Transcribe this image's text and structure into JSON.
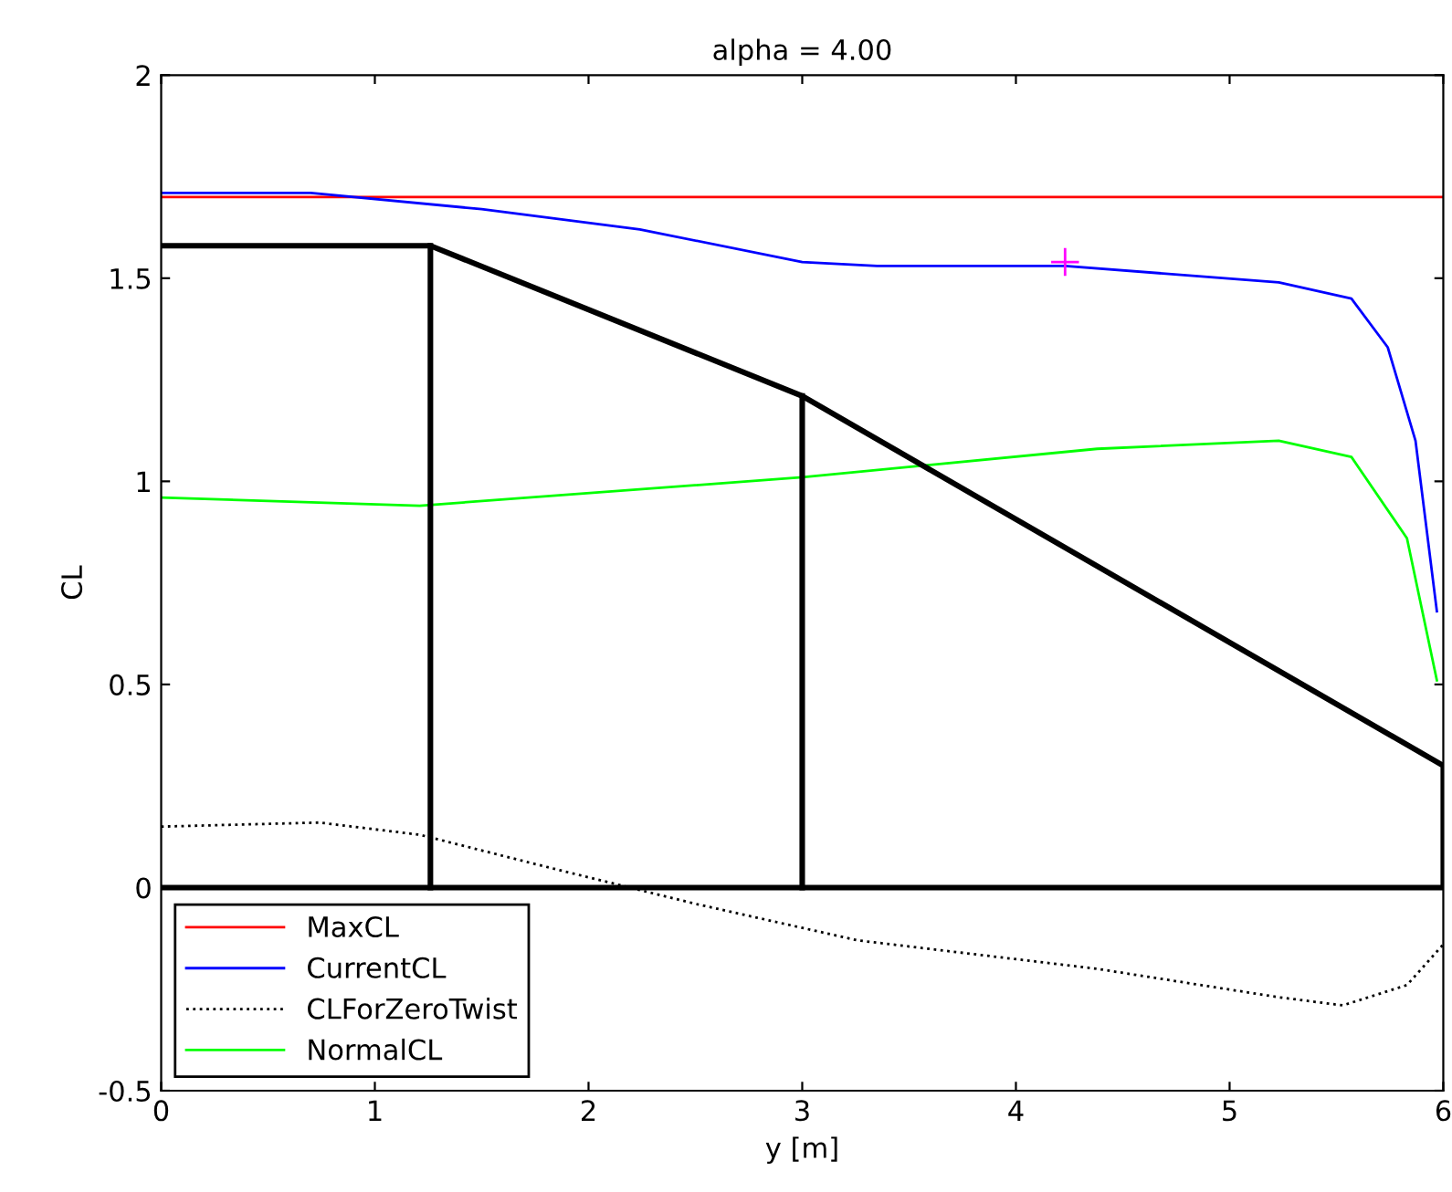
{
  "chart_data": {
    "type": "line",
    "title": "alpha = 4.00",
    "xlabel": "y [m]",
    "ylabel": "CL",
    "xlim": [
      0,
      6
    ],
    "ylim": [
      -0.5,
      2
    ],
    "xticks": [
      0,
      1,
      2,
      3,
      4,
      5,
      6
    ],
    "yticks": [
      -0.5,
      0,
      0.5,
      1,
      1.5,
      2
    ],
    "grid": false,
    "legend": "bottom left",
    "marker": "none",
    "series": [
      {
        "name": "MaxCL",
        "color": "#ff0000",
        "x": [
          0,
          6
        ],
        "values": [
          1.7,
          1.7
        ]
      },
      {
        "name": "CurrentCL",
        "color": "#0000ff",
        "x": [
          0,
          0.7,
          1.5,
          2.24,
          3.0,
          3.35,
          4.23,
          5.23,
          5.57,
          5.74,
          5.87,
          5.97
        ],
        "values": [
          1.71,
          1.71,
          1.67,
          1.62,
          1.54,
          1.53,
          1.53,
          1.49,
          1.45,
          1.33,
          1.1,
          0.68
        ]
      },
      {
        "name": "CLForZeroTwist",
        "color": "#000000",
        "line_style": "dotted",
        "x": [
          0,
          0.74,
          1.21,
          1.81,
          2.5,
          3.26,
          4.38,
          5.23,
          5.53,
          5.83,
          6
        ],
        "values": [
          0.15,
          0.16,
          0.13,
          0.05,
          -0.04,
          -0.13,
          -0.2,
          -0.27,
          -0.29,
          -0.24,
          -0.14
        ]
      },
      {
        "name": "NormalCL",
        "color": "#00ff00",
        "x": [
          0,
          1.21,
          3.0,
          4.38,
          5.23,
          5.57,
          5.83,
          5.97
        ],
        "values": [
          0.96,
          0.94,
          1.01,
          1.08,
          1.1,
          1.06,
          0.86,
          0.51
        ]
      },
      {
        "color": "#000000",
        "x": [
          0,
          1.26,
          3,
          6,
          6,
          0
        ],
        "values": [
          1.58,
          1.58,
          1.21,
          0.3,
          0,
          0
        ]
      },
      {
        "color": "#000000",
        "x": [
          1.26,
          1.26
        ],
        "values": [
          1.58,
          0
        ]
      },
      {
        "color": "#000000",
        "x": [
          3,
          3
        ],
        "values": [
          1.21,
          0
        ]
      },
      {
        "type": "scatter",
        "color": "#ff00ff",
        "marker": "cross",
        "x": [
          4.23
        ],
        "values": [
          1.54
        ]
      }
    ]
  }
}
